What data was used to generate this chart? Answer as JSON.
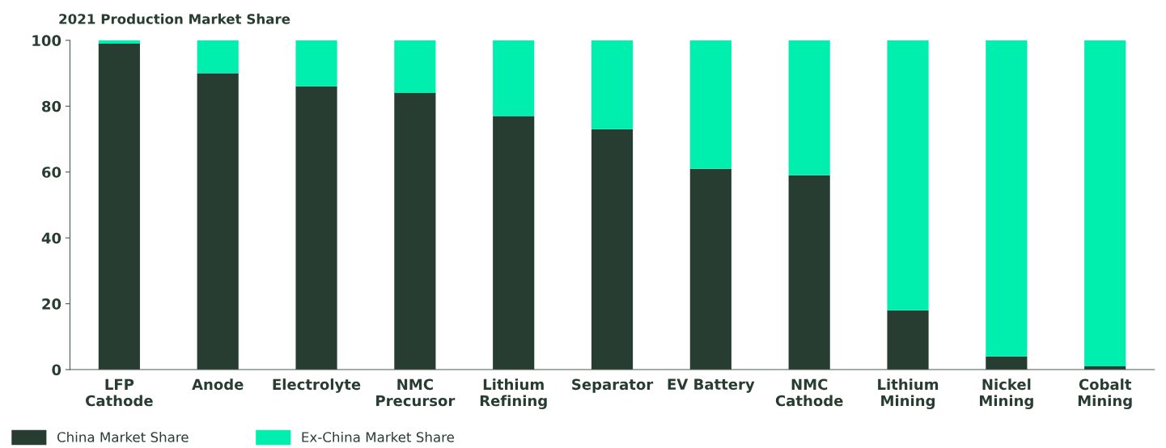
{
  "chart_data": {
    "type": "bar",
    "title": "2021 Production Market Share",
    "stacked": true,
    "categories": [
      "LFP\nCathode",
      "Anode",
      "Electrolyte",
      "NMC\nPrecursor",
      "Lithium\nRefining",
      "Separator",
      "EV Battery",
      "NMC\nCathode",
      "Lithium\nMining",
      "Nickel\nMining",
      "Cobalt\nMining"
    ],
    "series": [
      {
        "name": "China Market Share",
        "color": "#283d32",
        "values": [
          99,
          90,
          86,
          84,
          77,
          73,
          61,
          59,
          18,
          4,
          1
        ]
      },
      {
        "name": "Ex-China Market Share",
        "color": "#00efae",
        "values": [
          1,
          10,
          14,
          16,
          23,
          27,
          39,
          41,
          82,
          96,
          99
        ]
      }
    ],
    "ylim": [
      0,
      100
    ],
    "yticks": [
      0,
      20,
      40,
      60,
      80,
      100
    ],
    "grid": false,
    "legend": "bottom left"
  }
}
